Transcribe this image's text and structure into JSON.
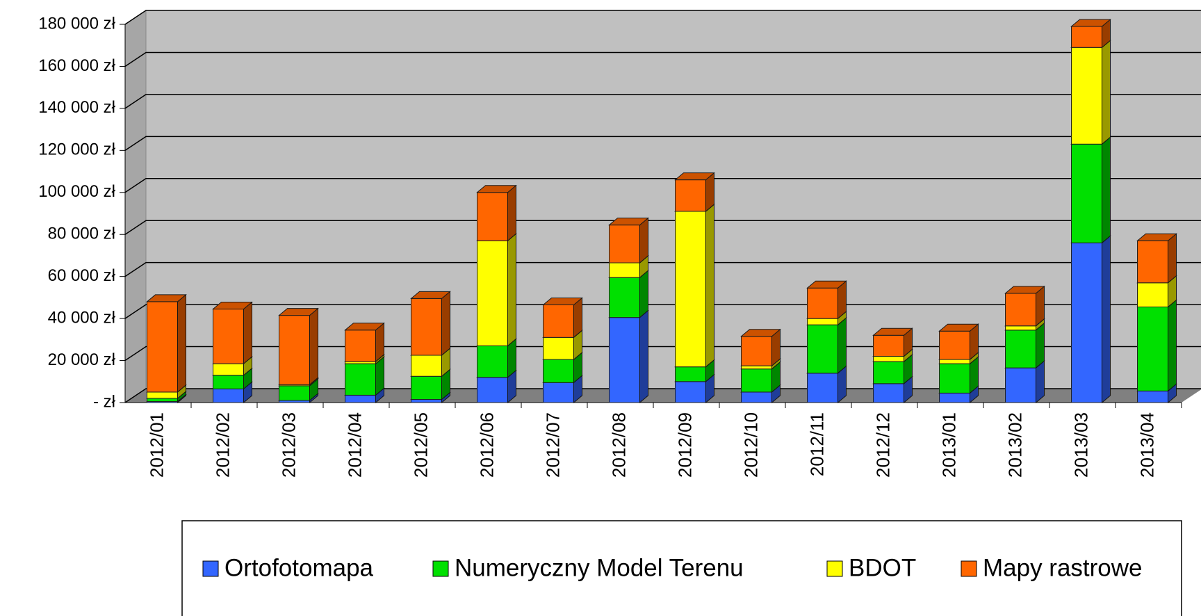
{
  "chart_data": {
    "type": "bar3d_stacked",
    "categories": [
      "2012/01",
      "2012/02",
      "2012/03",
      "2012/04",
      "2012/05",
      "2012/06",
      "2012/07",
      "2012/08",
      "2012/09",
      "2012/10",
      "2012/11",
      "2012/12",
      "2013/01",
      "2013/02",
      "2013/03",
      "2013/04"
    ],
    "series": [
      {
        "name": "Ortofotomapa",
        "color": "#3366ff",
        "values": [
          500,
          6500,
          1000,
          3500,
          1500,
          12000,
          9500,
          40500,
          10000,
          5000,
          14000,
          9000,
          4500,
          16500,
          76000,
          5500
        ]
      },
      {
        "name": "Numeryczny Model Terenu",
        "color": "#00e000",
        "values": [
          1500,
          6500,
          7000,
          15000,
          11000,
          15000,
          11000,
          19000,
          7000,
          11000,
          23000,
          10500,
          14000,
          18000,
          47000,
          40000
        ]
      },
      {
        "name": "BDOT",
        "color": "#ffff00",
        "values": [
          3000,
          5500,
          500,
          1000,
          10000,
          50000,
          10500,
          7000,
          74000,
          1500,
          3000,
          2500,
          2000,
          2000,
          46000,
          11500
        ]
      },
      {
        "name": "Mapy rastrowe",
        "color": "#ff6600",
        "values": [
          43000,
          26000,
          33000,
          15000,
          27000,
          23000,
          15500,
          18000,
          15000,
          14000,
          14500,
          10000,
          13500,
          15500,
          10000,
          20000
        ]
      }
    ],
    "ylim": [
      0,
      180000
    ],
    "yticks": [
      {
        "value": 0,
        "label": "- zł"
      },
      {
        "value": 20000,
        "label": "20 000 zł"
      },
      {
        "value": 40000,
        "label": "40 000 zł"
      },
      {
        "value": 60000,
        "label": "60 000 zł"
      },
      {
        "value": 80000,
        "label": "80 000 zł"
      },
      {
        "value": 100000,
        "label": "100 000 zł"
      },
      {
        "value": 120000,
        "label": "120 000 zł"
      },
      {
        "value": 140000,
        "label": "140 000 zł"
      },
      {
        "value": 160000,
        "label": "160 000 zł"
      },
      {
        "value": 180000,
        "label": "180 000 zł"
      }
    ],
    "grid": true,
    "legend": "bottom"
  }
}
